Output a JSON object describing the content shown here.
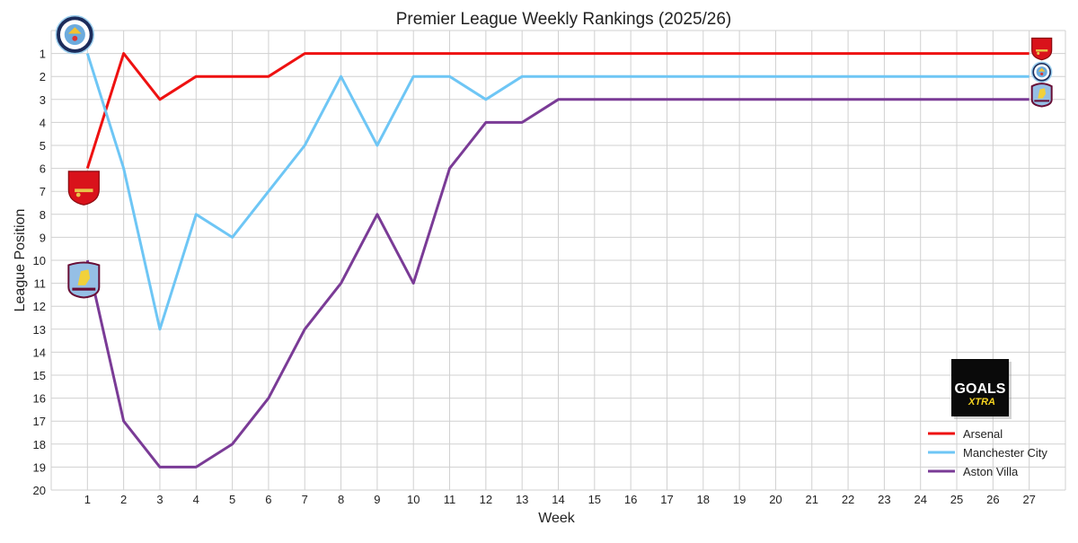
{
  "chart_data": {
    "type": "line",
    "title": "Premier League Weekly Rankings (2025/26)",
    "xlabel": "Week",
    "ylabel": "League Position",
    "x": [
      1,
      2,
      3,
      4,
      5,
      6,
      7,
      8,
      9,
      10,
      11,
      12,
      13,
      14,
      15,
      16,
      17,
      18,
      19,
      20,
      21,
      22,
      23,
      24,
      25,
      26,
      27
    ],
    "xlim": [
      0,
      28
    ],
    "ylim": [
      20,
      0
    ],
    "y_inverted": true,
    "yticks": [
      1,
      2,
      3,
      4,
      5,
      6,
      7,
      8,
      9,
      10,
      11,
      12,
      13,
      14,
      15,
      16,
      17,
      18,
      19,
      20
    ],
    "grid": true,
    "legend_position": "bottom-right",
    "series": [
      {
        "name": "Arsenal",
        "color": "#ee1111",
        "icon": "arsenal-crest-icon",
        "values": [
          6,
          1,
          3,
          2,
          2,
          2,
          1,
          1,
          1,
          1,
          1,
          1,
          1,
          1,
          1,
          1,
          1,
          1,
          1,
          1,
          1,
          1,
          1,
          1,
          1,
          1,
          1
        ]
      },
      {
        "name": "Manchester City",
        "color": "#6ec6f5",
        "icon": "manchester-city-crest-icon",
        "values": [
          1,
          6,
          13,
          8,
          9,
          7,
          5,
          2,
          5,
          2,
          2,
          3,
          2,
          2,
          2,
          2,
          2,
          2,
          2,
          2,
          2,
          2,
          2,
          2,
          2,
          2,
          2
        ]
      },
      {
        "name": "Aston Villa",
        "color": "#7a3b96",
        "icon": "aston-villa-crest-icon",
        "values": [
          10,
          17,
          19,
          19,
          18,
          16,
          13,
          11,
          8,
          11,
          6,
          4,
          4,
          3,
          3,
          3,
          3,
          3,
          3,
          3,
          3,
          3,
          3,
          3,
          3,
          3,
          3
        ]
      }
    ]
  },
  "logo": {
    "icon": "goals-xtra-logo",
    "text": "GOALS XTRA"
  }
}
